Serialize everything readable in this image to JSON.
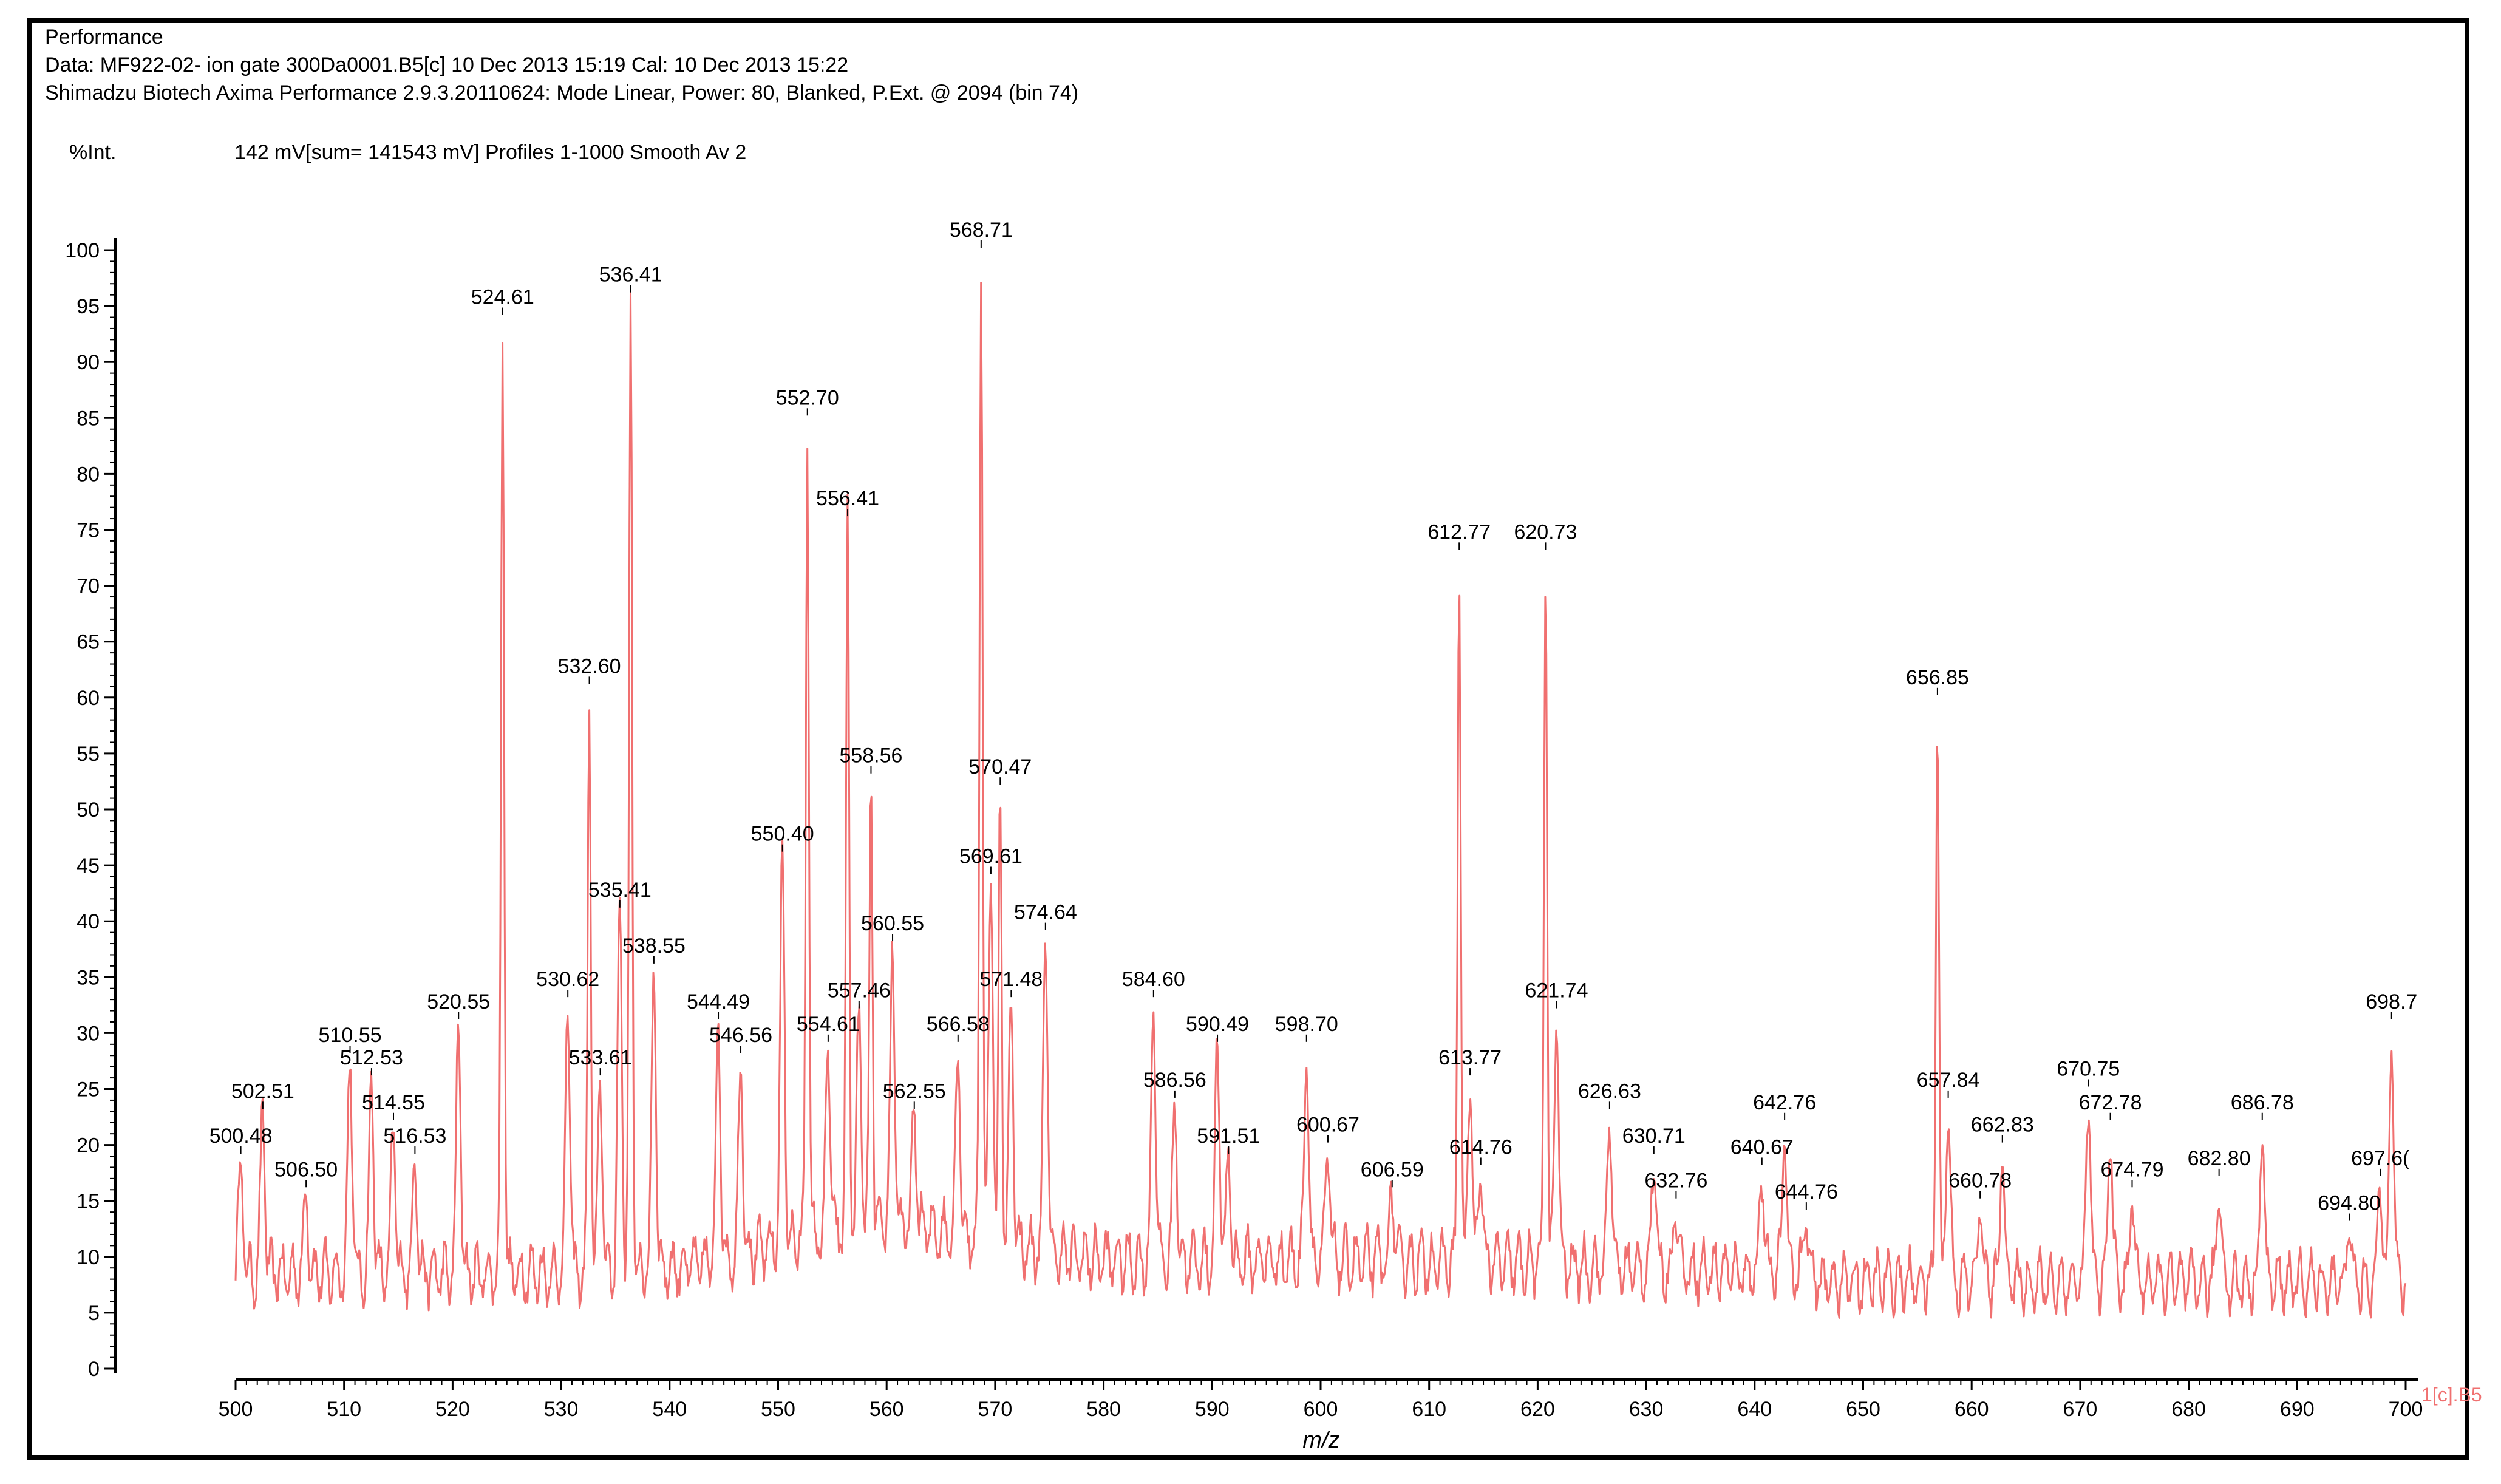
{
  "header": {
    "line1": "Performance",
    "line2": "Data: MF922-02- ion gate 300Da0001.B5[c] 10 Dec 2013 15:19 Cal: 10 Dec 2013 15:22",
    "line3": "Shimadzu Biotech Axima Performance 2.9.3.20110624: Mode Linear, Power: 80, Blanked, P.Ext. @ 2094 (bin 74)",
    "intensity_label": "%Int.",
    "profile_info": "142 mV[sum= 141543 mV]  Profiles 1-1000 Smooth Av 2"
  },
  "chart_data": {
    "type": "line",
    "title": "Performance",
    "xlabel": "m/z",
    "ylabel": "%Int.",
    "xlim": [
      500,
      700
    ],
    "ylim": [
      0,
      100
    ],
    "x_ticks": [
      500,
      510,
      520,
      530,
      540,
      550,
      560,
      570,
      580,
      590,
      600,
      610,
      620,
      630,
      640,
      650,
      660,
      670,
      680,
      690,
      700
    ],
    "y_ticks": [
      0,
      5,
      10,
      15,
      20,
      25,
      30,
      35,
      40,
      45,
      50,
      55,
      60,
      65,
      70,
      75,
      80,
      85,
      90,
      95,
      100
    ],
    "series_color": "#f07070",
    "edge_label": "1[c].B5",
    "peaks": [
      {
        "mz": 500.48,
        "i": 19,
        "label": "500.48"
      },
      {
        "mz": 502.51,
        "i": 23,
        "label": "502.51"
      },
      {
        "mz": 506.5,
        "i": 16,
        "label": "506.50"
      },
      {
        "mz": 510.55,
        "i": 28,
        "label": "510.55"
      },
      {
        "mz": 512.53,
        "i": 26,
        "label": "512.53"
      },
      {
        "mz": 514.55,
        "i": 22,
        "label": "514.55"
      },
      {
        "mz": 516.53,
        "i": 19,
        "label": "516.53"
      },
      {
        "mz": 520.55,
        "i": 31,
        "label": "520.55"
      },
      {
        "mz": 524.61,
        "i": 94,
        "label": "524.61"
      },
      {
        "mz": 530.62,
        "i": 33,
        "label": "530.62"
      },
      {
        "mz": 532.6,
        "i": 61,
        "label": "532.60"
      },
      {
        "mz": 533.61,
        "i": 26,
        "label": "533.61"
      },
      {
        "mz": 535.41,
        "i": 41,
        "label": "535.41"
      },
      {
        "mz": 536.41,
        "i": 96,
        "label": "536.41"
      },
      {
        "mz": 538.55,
        "i": 36,
        "label": "538.55"
      },
      {
        "mz": 544.49,
        "i": 31,
        "label": "544.49"
      },
      {
        "mz": 546.56,
        "i": 28,
        "label": "546.56"
      },
      {
        "mz": 550.4,
        "i": 46,
        "label": "550.40"
      },
      {
        "mz": 552.7,
        "i": 85,
        "label": "552.70"
      },
      {
        "mz": 554.61,
        "i": 29,
        "label": "554.61"
      },
      {
        "mz": 556.41,
        "i": 76,
        "label": "556.41"
      },
      {
        "mz": 557.46,
        "i": 32,
        "label": "557.46"
      },
      {
        "mz": 558.56,
        "i": 53,
        "label": "558.56"
      },
      {
        "mz": 560.55,
        "i": 38,
        "label": "560.55"
      },
      {
        "mz": 562.55,
        "i": 23,
        "label": "562.55"
      },
      {
        "mz": 566.58,
        "i": 29,
        "label": "566.58"
      },
      {
        "mz": 568.71,
        "i": 100,
        "label": "568.71"
      },
      {
        "mz": 569.61,
        "i": 44,
        "label": "569.61"
      },
      {
        "mz": 570.47,
        "i": 52,
        "label": "570.47"
      },
      {
        "mz": 571.48,
        "i": 33,
        "label": "571.48"
      },
      {
        "mz": 574.64,
        "i": 39,
        "label": "574.64"
      },
      {
        "mz": 584.6,
        "i": 33,
        "label": "584.60"
      },
      {
        "mz": 586.56,
        "i": 24,
        "label": "586.56"
      },
      {
        "mz": 590.49,
        "i": 29,
        "label": "590.49"
      },
      {
        "mz": 591.51,
        "i": 19,
        "label": "591.51"
      },
      {
        "mz": 598.7,
        "i": 29,
        "label": "598.70"
      },
      {
        "mz": 600.67,
        "i": 20,
        "label": "600.67"
      },
      {
        "mz": 606.59,
        "i": 16,
        "label": "606.59"
      },
      {
        "mz": 612.77,
        "i": 73,
        "label": "612.77"
      },
      {
        "mz": 613.77,
        "i": 26,
        "label": "613.77"
      },
      {
        "mz": 614.76,
        "i": 18,
        "label": "614.76"
      },
      {
        "mz": 620.73,
        "i": 73,
        "label": "620.73"
      },
      {
        "mz": 621.74,
        "i": 32,
        "label": "621.74"
      },
      {
        "mz": 626.63,
        "i": 23,
        "label": "626.63"
      },
      {
        "mz": 630.71,
        "i": 19,
        "label": "630.71"
      },
      {
        "mz": 632.76,
        "i": 15,
        "label": "632.76"
      },
      {
        "mz": 640.67,
        "i": 18,
        "label": "640.67"
      },
      {
        "mz": 642.76,
        "i": 22,
        "label": "642.76"
      },
      {
        "mz": 644.76,
        "i": 14,
        "label": "644.76"
      },
      {
        "mz": 656.85,
        "i": 60,
        "label": "656.85"
      },
      {
        "mz": 657.84,
        "i": 24,
        "label": "657.84"
      },
      {
        "mz": 660.78,
        "i": 15,
        "label": "660.78"
      },
      {
        "mz": 662.83,
        "i": 20,
        "label": "662.83"
      },
      {
        "mz": 670.75,
        "i": 25,
        "label": "670.75"
      },
      {
        "mz": 672.78,
        "i": 22,
        "label": "672.78"
      },
      {
        "mz": 674.79,
        "i": 16,
        "label": "674.79"
      },
      {
        "mz": 682.8,
        "i": 17,
        "label": "682.80"
      },
      {
        "mz": 686.78,
        "i": 22,
        "label": "686.78"
      },
      {
        "mz": 694.8,
        "i": 13,
        "label": "694.80"
      },
      {
        "mz": 697.66,
        "i": 17,
        "label": "697.6("
      },
      {
        "mz": 698.7,
        "i": 31,
        "label": "698.7"
      }
    ]
  }
}
